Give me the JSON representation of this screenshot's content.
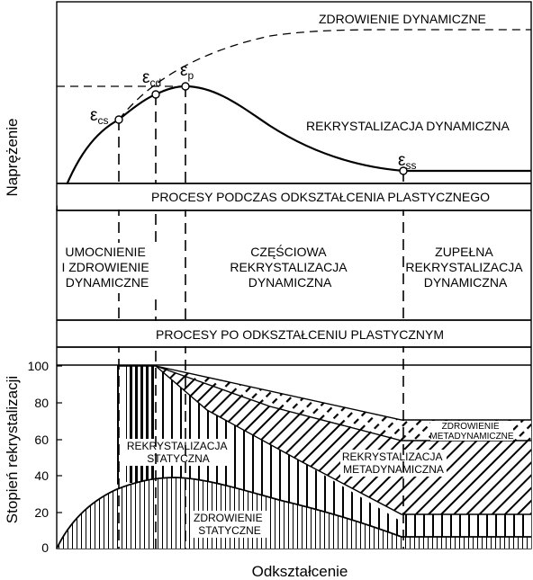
{
  "labels": {
    "dynamic_recovery": "ZDROWIENIE DYNAMICZNE",
    "dynamic_recrystallization": "REKRYSTALIZACJA DYNAMICZNA",
    "processes_during": "PROCESY PODCZAS ODKSZTAŁCENIA PLASTYCZNEGO",
    "hardening_line1": "UMOCNIENIE",
    "hardening_line2": "I ZDROWIENIE",
    "hardening_line3": "DYNAMICZNE",
    "partial_line1": "CZĘŚCIOWA",
    "partial_line2": "REKRYSTALIZACJA",
    "partial_line3": "DYNAMICZNA",
    "full_line1": "ZUPEŁNA",
    "full_line2": "REKRYSTALIZACJA",
    "full_line3": "DYNAMICZNA",
    "processes_after": "PROCESY PO ODKSZTAŁCENIU  PLASTYCZNYM",
    "static_rex_line1": "REKRYSTALIZACJA",
    "static_rex_line2": "STATYCZNA",
    "meta_rex_line1": "REKRYSTALIZACJA",
    "meta_rex_line2": "METADYNAMICZNA",
    "meta_rec_line1": "ZDROWIENIE",
    "meta_rec_line2": "METADYNAMICZNE",
    "static_rec_line1": "ZDROWIENIE",
    "static_rec_line2": "STATYCZNE"
  },
  "strain_points": {
    "cs_main": "ε",
    "cs_sub": "cs",
    "cd_main": "ε",
    "cd_sub": "cd",
    "p_main": "ε",
    "p_sub": "p",
    "ss_main": "ε",
    "ss_sub": "ss"
  },
  "axes": {
    "top_ylabel": "Naprężenie",
    "bottom_ylabel": "Stopień rekrystalizacji",
    "xlabel": "Odkształcenie",
    "yticks": [
      "100",
      "80",
      "60",
      "40",
      "20",
      "0"
    ]
  },
  "colors": {
    "ink": "#000000",
    "paper": "#ffffff"
  }
}
